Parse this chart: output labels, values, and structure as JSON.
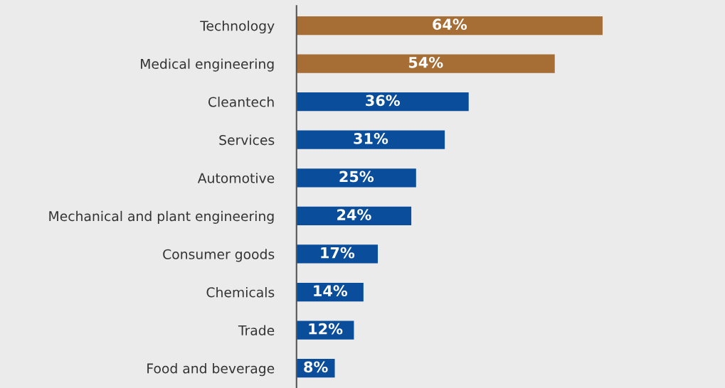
{
  "chart_data": {
    "type": "bar",
    "orientation": "horizontal",
    "categories": [
      "Technology",
      "Medical engineering",
      "Cleantech",
      "Services",
      "Automotive",
      "Mechanical and plant engineering",
      "Consumer goods",
      "Chemicals",
      "Trade",
      "Food and beverage"
    ],
    "values": [
      64,
      54,
      36,
      31,
      25,
      24,
      17,
      14,
      12,
      8
    ],
    "colors": [
      "#a66d35",
      "#a66d35",
      "#0a4d9a",
      "#0a4d9a",
      "#0a4d9a",
      "#0a4d9a",
      "#0a4d9a",
      "#0a4d9a",
      "#0a4d9a",
      "#0a4d9a"
    ],
    "value_labels": [
      "64%",
      "54%",
      "36%",
      "31%",
      "25%",
      "24%",
      "17%",
      "14%",
      "12%",
      "8%"
    ],
    "xlim": [
      0,
      89.6
    ],
    "tick_labels": "y",
    "grid": false,
    "legend": false
  }
}
